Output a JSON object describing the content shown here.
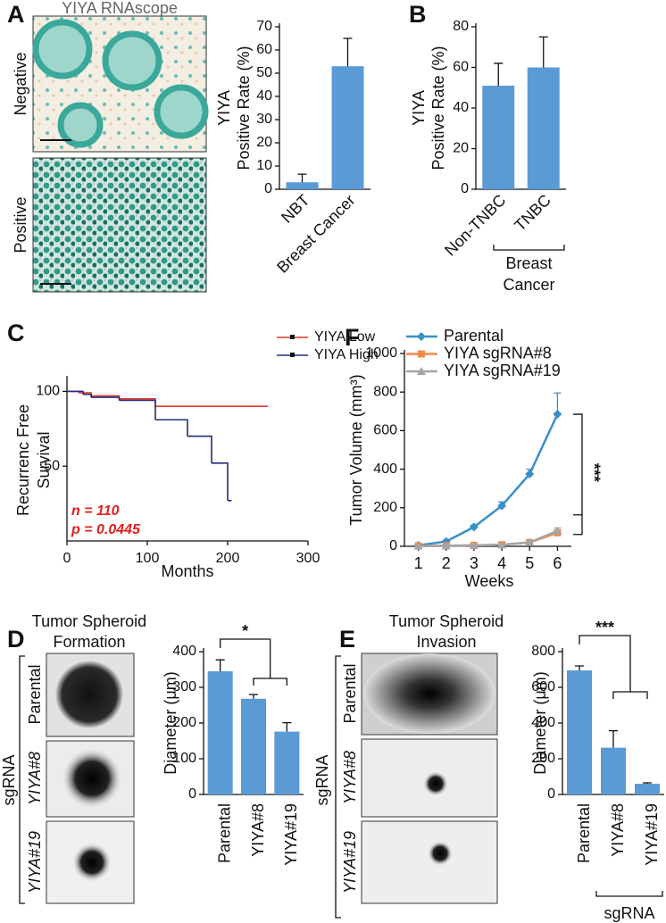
{
  "figure": {
    "a_images": {
      "title": "YIYA RNAscope",
      "rows": [
        "Negative",
        "Positive"
      ]
    },
    "d_images": {
      "title": [
        "Tumor Spheroid",
        "Formation"
      ],
      "group": "sgRNA",
      "rows": [
        "Parental",
        "YIYA#8",
        "YIYA#19"
      ]
    },
    "e_images": {
      "title": [
        "Tumor Spheroid",
        "Invasion"
      ],
      "group": "sgRNA",
      "rows": [
        "Parental",
        "YIYA#8",
        "YIYA#19"
      ]
    }
  },
  "chart_data": [
    {
      "type": "bar",
      "panel": "A",
      "ylabel": [
        "YIYA",
        "Positive Rate (%)"
      ],
      "categories": [
        "NBT",
        "Breast Cancer"
      ],
      "values": [
        3,
        53
      ],
      "errors": [
        3.5,
        12
      ],
      "color": "#5b9bd5",
      "ylim": [
        0,
        70
      ],
      "yticks": [
        0,
        10,
        20,
        30,
        40,
        50,
        60,
        70
      ]
    },
    {
      "type": "bar",
      "panel": "B",
      "ylabel": [
        "YIYA",
        "Positive Rate (%)"
      ],
      "categories": [
        "Non-TNBC",
        "TNBC"
      ],
      "values": [
        51,
        60
      ],
      "errors": [
        11,
        15
      ],
      "color": "#5b9bd5",
      "ylim": [
        0,
        80
      ],
      "yticks": [
        0,
        20,
        40,
        60,
        80
      ],
      "group_label": [
        "Breast",
        "Cancer"
      ]
    },
    {
      "type": "line",
      "panel": "C",
      "step": true,
      "xlabel": "Months",
      "ylabel": [
        "Recurrenc Free",
        "Survival"
      ],
      "annotations": [
        "n = 110",
        "p = 0.0445"
      ],
      "series": [
        {
          "name": "YIYA Low",
          "color": "#e8372c",
          "x": [
            0,
            15,
            30,
            65,
            110,
            250
          ],
          "values": [
            100,
            99,
            97,
            95,
            90,
            90
          ]
        },
        {
          "name": "YIYA High",
          "color": "#1f2f7c",
          "x": [
            0,
            20,
            30,
            65,
            110,
            150,
            180,
            200,
            205
          ],
          "values": [
            100,
            98,
            96,
            94,
            81,
            70,
            52,
            27,
            27
          ]
        }
      ],
      "xlim": [
        0,
        300
      ],
      "xticks": [
        0,
        100,
        200,
        300
      ],
      "ylim": [
        0,
        108
      ],
      "yticks": [
        50,
        100
      ]
    },
    {
      "type": "line",
      "panel": "F",
      "xlabel": "Weeks",
      "ylabel": "Tumor Volume (mm³)",
      "annotations": [
        "***"
      ],
      "x": [
        1,
        2,
        3,
        4,
        5,
        6
      ],
      "series": [
        {
          "name": "Parental",
          "color": "#3a8fc8",
          "marker": "diamond",
          "values": [
            5,
            25,
            100,
            210,
            375,
            685
          ],
          "errors": [
            2,
            5,
            10,
            20,
            25,
            110
          ]
        },
        {
          "name": "YIYA sgRNA#8",
          "color": "#f08a4b",
          "marker": "square",
          "values": [
            2,
            3,
            5,
            8,
            20,
            70
          ],
          "errors": [
            1,
            1,
            2,
            3,
            5,
            15
          ]
        },
        {
          "name": "YIYA sgRNA#19",
          "color": "#a5a5a5",
          "marker": "triangle",
          "values": [
            2,
            3,
            5,
            8,
            20,
            80
          ],
          "errors": [
            1,
            1,
            2,
            3,
            5,
            15
          ]
        }
      ],
      "xlim": [
        0.5,
        6.5
      ],
      "xticks": [
        1,
        2,
        3,
        4,
        5,
        6
      ],
      "ylim": [
        0,
        1000
      ],
      "yticks": [
        0,
        200,
        400,
        600,
        800,
        1000
      ]
    },
    {
      "type": "bar",
      "panel": "D",
      "ylabel": [
        "Diameter (μm)"
      ],
      "categories": [
        "Parental",
        "YIYA#8",
        "YIYA#19"
      ],
      "values": [
        345,
        268,
        176
      ],
      "errors": [
        32,
        12,
        25
      ],
      "color": "#5b9bd5",
      "ylim": [
        0,
        400
      ],
      "yticks": [
        0,
        100,
        200,
        300,
        400
      ],
      "annotations": [
        "*"
      ]
    },
    {
      "type": "bar",
      "panel": "E",
      "ylabel": [
        "Diameter (μm)"
      ],
      "categories": [
        "Parental",
        "YIYA#8",
        "YIYA#19"
      ],
      "values": [
        695,
        262,
        60
      ],
      "errors": [
        25,
        95,
        5
      ],
      "color": "#5b9bd5",
      "ylim": [
        0,
        800
      ],
      "yticks": [
        0,
        200,
        400,
        600,
        800
      ],
      "annotations": [
        "***"
      ],
      "group_label": [
        "sgRNA"
      ]
    }
  ]
}
